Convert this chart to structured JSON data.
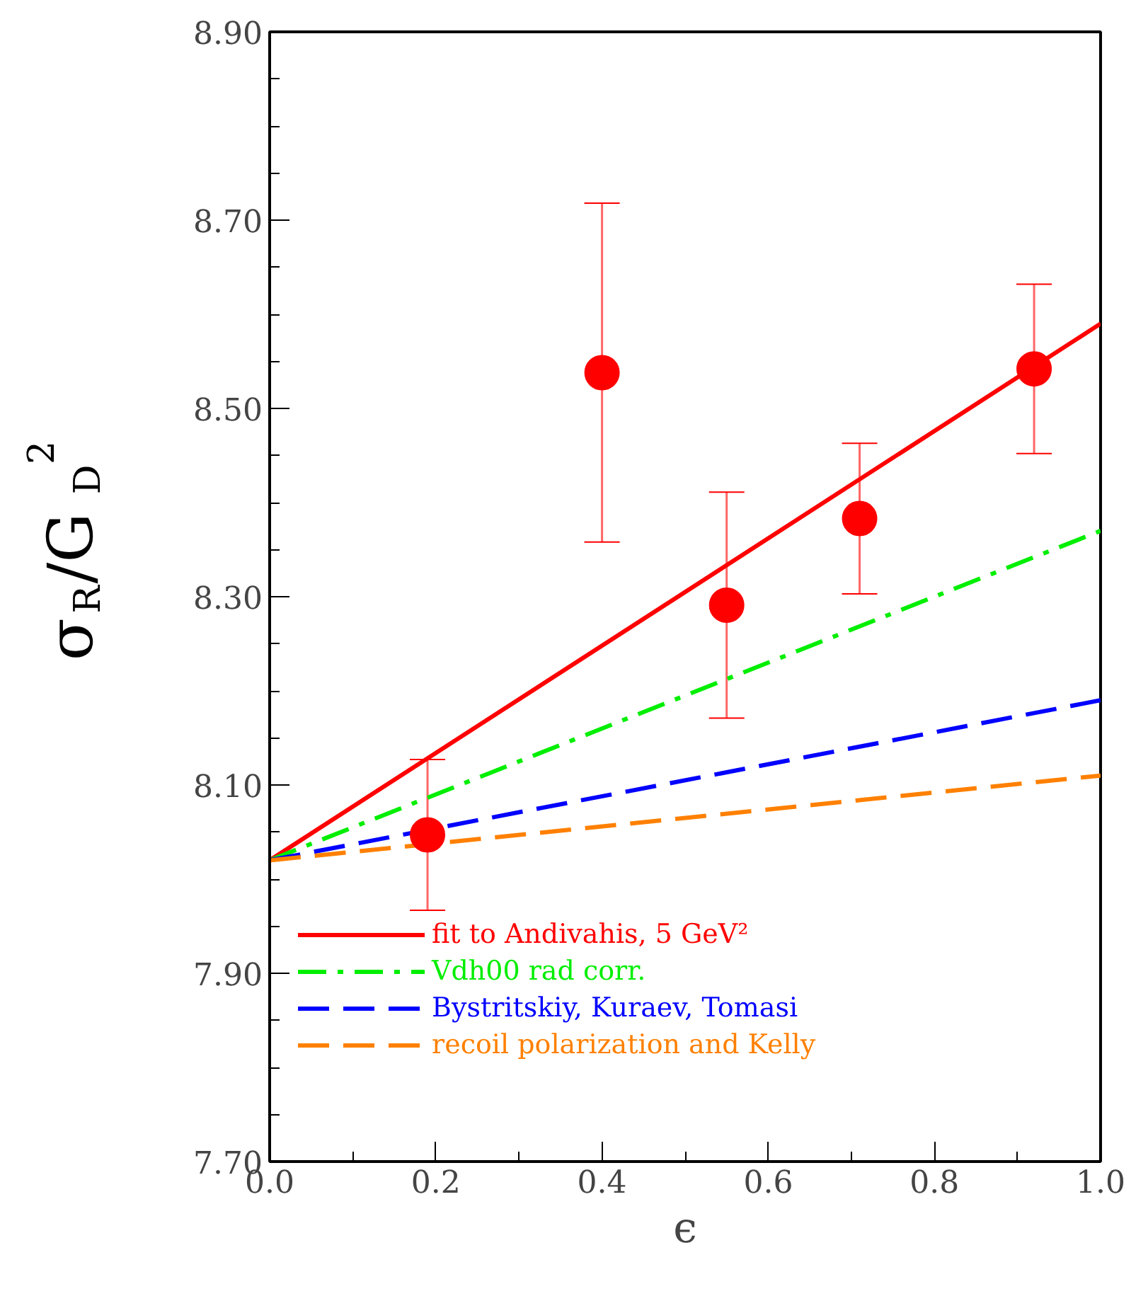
{
  "chart_data": {
    "type": "scatter",
    "xlabel": "ϵ",
    "ylabel": "σ$_{R}$/G$_{D}$$^{2}$",
    "xlim": [
      0.0,
      1.0
    ],
    "ylim": [
      7.7,
      8.9
    ],
    "xticks": [
      {
        "value": 0.0,
        "label": "0.0"
      },
      0.2,
      0.4,
      0.6,
      0.8,
      {
        "value": 1.0,
        "label": "1.0"
      }
    ],
    "yticks": [
      {
        "value": 7.7,
        "label": "7.70"
      },
      {
        "value": 7.9,
        "label": "7.90"
      },
      {
        "value": 8.1,
        "label": "8.10"
      },
      {
        "value": 8.3,
        "label": "8.30"
      },
      {
        "value": 8.5,
        "label": "8.50"
      },
      {
        "value": 8.7,
        "label": "8.70"
      },
      {
        "value": 8.9,
        "label": "8.90"
      }
    ],
    "grid": false,
    "legend": "bottom left",
    "series": [
      {
        "type": "line",
        "name": "fit to Andivahis, 5 GeV²",
        "color": "#ff0000",
        "line_style": "solid",
        "x": [
          0.0,
          1.0
        ],
        "values": [
          8.02,
          8.59
        ]
      },
      {
        "type": "line",
        "name": "Vdh00 rad corr.",
        "color": "#00ee00",
        "line_style": "dashdot",
        "x": [
          0.0,
          1.0
        ],
        "values": [
          8.02,
          8.37
        ]
      },
      {
        "type": "line",
        "name": "Bystritskiy, Kuraev, Tomasi",
        "color": "#0000ff",
        "line_style": "dashed",
        "x": [
          0.0,
          1.0
        ],
        "values": [
          8.02,
          8.19
        ]
      },
      {
        "type": "line",
        "name": "recoil polarization and Kelly",
        "color": "#ff8000",
        "line_style": "dashed",
        "x": [
          0.0,
          1.0
        ],
        "values": [
          8.02,
          8.11
        ]
      },
      {
        "type": "scatter",
        "color": "#ff0000",
        "marker": "circle",
        "x": [
          0.19,
          0.4,
          0.55,
          0.71,
          0.92
        ],
        "values": [
          8.047,
          8.538,
          8.291,
          8.383,
          8.542
        ],
        "errors": [
          0.08,
          0.18,
          0.12,
          0.08,
          0.09
        ]
      }
    ]
  }
}
